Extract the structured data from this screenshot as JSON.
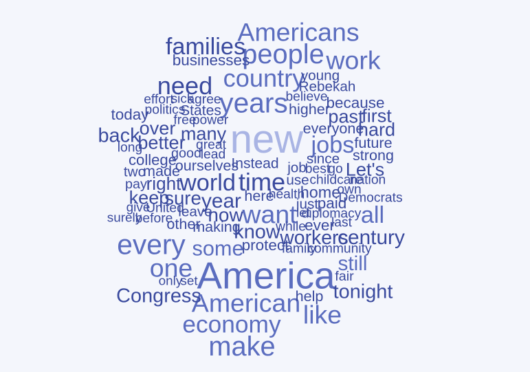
{
  "cloud": {
    "colors": {
      "dark": "#3a4a9e",
      "mid": "#5b6dbf",
      "light": "#a9b4e4"
    },
    "words": [
      {
        "text": "new",
        "weight": 1.0,
        "color": "light"
      },
      {
        "text": "America",
        "weight": 0.93,
        "color": "mid"
      },
      {
        "text": "every",
        "weight": 0.62,
        "color": "mid"
      },
      {
        "text": "years",
        "weight": 0.62,
        "color": "mid"
      },
      {
        "text": "Americans",
        "weight": 0.55,
        "color": "mid"
      },
      {
        "text": "people",
        "weight": 0.6,
        "color": "mid"
      },
      {
        "text": "make",
        "weight": 0.6,
        "color": "mid"
      },
      {
        "text": "work",
        "weight": 0.55,
        "color": "mid"
      },
      {
        "text": "families",
        "weight": 0.48,
        "color": "dark"
      },
      {
        "text": "country",
        "weight": 0.52,
        "color": "mid"
      },
      {
        "text": "need",
        "weight": 0.52,
        "color": "dark"
      },
      {
        "text": "jobs",
        "weight": 0.48,
        "color": "mid"
      },
      {
        "text": "time",
        "weight": 0.52,
        "color": "dark"
      },
      {
        "text": "world",
        "weight": 0.48,
        "color": "dark"
      },
      {
        "text": "want",
        "weight": 0.55,
        "color": "mid"
      },
      {
        "text": "one",
        "weight": 0.55,
        "color": "mid"
      },
      {
        "text": "American",
        "weight": 0.55,
        "color": "mid"
      },
      {
        "text": "economy",
        "weight": 0.5,
        "color": "mid"
      },
      {
        "text": "like",
        "weight": 0.55,
        "color": "mid"
      },
      {
        "text": "all",
        "weight": 0.48,
        "color": "mid"
      },
      {
        "text": "century",
        "weight": 0.38,
        "color": "dark"
      },
      {
        "text": "workers",
        "weight": 0.35,
        "color": "dark"
      },
      {
        "text": "some",
        "weight": 0.4,
        "color": "mid"
      },
      {
        "text": "know",
        "weight": 0.36,
        "color": "dark"
      },
      {
        "text": "year",
        "weight": 0.38,
        "color": "dark"
      },
      {
        "text": "now",
        "weight": 0.34,
        "color": "dark"
      },
      {
        "text": "sure",
        "weight": 0.33,
        "color": "dark"
      },
      {
        "text": "keep",
        "weight": 0.32,
        "color": "dark"
      },
      {
        "text": "right",
        "weight": 0.3,
        "color": "dark"
      },
      {
        "text": "back",
        "weight": 0.36,
        "color": "dark"
      },
      {
        "text": "better",
        "weight": 0.32,
        "color": "dark"
      },
      {
        "text": "over",
        "weight": 0.32,
        "color": "dark"
      },
      {
        "text": "many",
        "weight": 0.32,
        "color": "dark"
      },
      {
        "text": "past",
        "weight": 0.32,
        "color": "dark"
      },
      {
        "text": "first",
        "weight": 0.32,
        "color": "dark"
      },
      {
        "text": "hard",
        "weight": 0.32,
        "color": "dark"
      },
      {
        "text": "Let's",
        "weight": 0.32,
        "color": "dark"
      },
      {
        "text": "still",
        "weight": 0.38,
        "color": "mid"
      },
      {
        "text": "tonight",
        "weight": 0.36,
        "color": "dark"
      },
      {
        "text": "Congress",
        "weight": 0.36,
        "color": "dark"
      },
      {
        "text": "businesses",
        "weight": 0.22,
        "color": "dark"
      },
      {
        "text": "young",
        "weight": 0.18,
        "color": "dark"
      },
      {
        "text": "Rebekah",
        "weight": 0.18,
        "color": "dark"
      },
      {
        "text": "because",
        "weight": 0.22,
        "color": "dark"
      },
      {
        "text": "higher",
        "weight": 0.2,
        "color": "dark"
      },
      {
        "text": "today",
        "weight": 0.22,
        "color": "dark"
      },
      {
        "text": "States",
        "weight": 0.19,
        "color": "dark"
      },
      {
        "text": "everyone",
        "weight": 0.2,
        "color": "dark"
      },
      {
        "text": "future",
        "weight": 0.2,
        "color": "dark"
      },
      {
        "text": "strong",
        "weight": 0.2,
        "color": "dark"
      },
      {
        "text": "college",
        "weight": 0.21,
        "color": "dark"
      },
      {
        "text": "made",
        "weight": 0.2,
        "color": "dark"
      },
      {
        "text": "ourselves",
        "weight": 0.2,
        "color": "dark"
      },
      {
        "text": "Instead",
        "weight": 0.19,
        "color": "dark"
      },
      {
        "text": "job",
        "weight": 0.18,
        "color": "dark"
      },
      {
        "text": "home",
        "weight": 0.24,
        "color": "dark"
      },
      {
        "text": "paid",
        "weight": 0.22,
        "color": "dark"
      },
      {
        "text": "ever",
        "weight": 0.22,
        "color": "dark"
      },
      {
        "text": "protect",
        "weight": 0.22,
        "color": "dark"
      },
      {
        "text": "help",
        "weight": 0.2,
        "color": "dark"
      },
      {
        "text": "other",
        "weight": 0.2,
        "color": "dark"
      },
      {
        "text": "making",
        "weight": 0.2,
        "color": "dark"
      },
      {
        "text": "leave",
        "weight": 0.18,
        "color": "dark"
      },
      {
        "text": "here",
        "weight": 0.2,
        "color": "dark"
      },
      {
        "text": "use",
        "weight": 0.18,
        "color": "dark"
      },
      {
        "text": "just",
        "weight": 0.18,
        "color": "dark"
      },
      {
        "text": "two",
        "weight": 0.18,
        "color": "dark"
      },
      {
        "text": "pay",
        "weight": 0.16,
        "color": "dark"
      },
      {
        "text": "good",
        "weight": 0.16,
        "color": "dark"
      },
      {
        "text": "lead",
        "weight": 0.15,
        "color": "dark"
      },
      {
        "text": "great",
        "weight": 0.15,
        "color": "dark"
      },
      {
        "text": "long",
        "weight": 0.15,
        "color": "dark"
      },
      {
        "text": "free",
        "weight": 0.15,
        "color": "dark"
      },
      {
        "text": "power",
        "weight": 0.15,
        "color": "dark"
      },
      {
        "text": "politics",
        "weight": 0.15,
        "color": "dark"
      },
      {
        "text": "effort",
        "weight": 0.15,
        "color": "dark"
      },
      {
        "text": "sick",
        "weight": 0.14,
        "color": "dark"
      },
      {
        "text": "agree",
        "weight": 0.15,
        "color": "dark"
      },
      {
        "text": "believe",
        "weight": 0.15,
        "color": "dark"
      },
      {
        "text": "since",
        "weight": 0.18,
        "color": "dark"
      },
      {
        "text": "best",
        "weight": 0.15,
        "color": "dark"
      },
      {
        "text": "go",
        "weight": 0.15,
        "color": "dark"
      },
      {
        "text": "childcare",
        "weight": 0.15,
        "color": "dark"
      },
      {
        "text": "nation",
        "weight": 0.15,
        "color": "dark"
      },
      {
        "text": "own",
        "weight": 0.15,
        "color": "dark"
      },
      {
        "text": "health",
        "weight": 0.15,
        "color": "dark"
      },
      {
        "text": "Democrats",
        "weight": 0.15,
        "color": "dark"
      },
      {
        "text": "let",
        "weight": 0.14,
        "color": "dark"
      },
      {
        "text": "diplomacy",
        "weight": 0.15,
        "color": "dark"
      },
      {
        "text": "last",
        "weight": 0.15,
        "color": "dark"
      },
      {
        "text": "while",
        "weight": 0.15,
        "color": "dark"
      },
      {
        "text": "family",
        "weight": 0.15,
        "color": "dark"
      },
      {
        "text": "community",
        "weight": 0.15,
        "color": "dark"
      },
      {
        "text": "give",
        "weight": 0.14,
        "color": "dark"
      },
      {
        "text": "United",
        "weight": 0.15,
        "color": "dark"
      },
      {
        "text": "surely",
        "weight": 0.14,
        "color": "dark"
      },
      {
        "text": "before",
        "weight": 0.15,
        "color": "dark"
      },
      {
        "text": "only",
        "weight": 0.14,
        "color": "dark"
      },
      {
        "text": "set",
        "weight": 0.14,
        "color": "dark"
      },
      {
        "text": "fair",
        "weight": 0.16,
        "color": "dark"
      }
    ]
  }
}
